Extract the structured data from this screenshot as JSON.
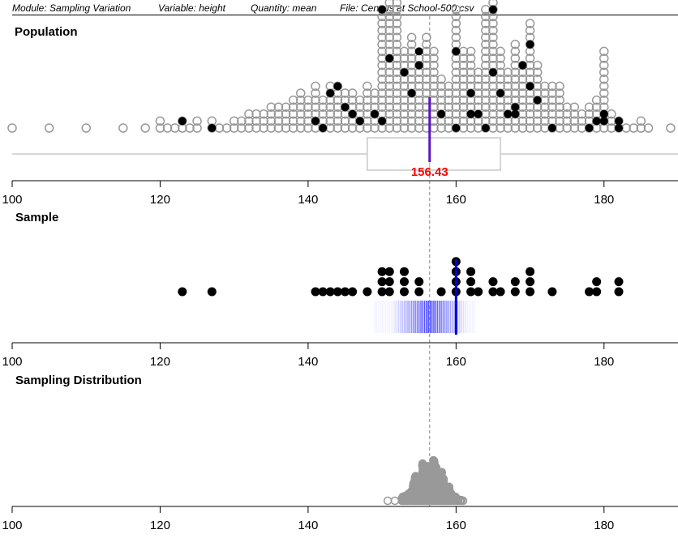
{
  "header": {
    "module": "Module: Sampling Variation",
    "variable": "Variable: height",
    "quantity": "Quantity: mean",
    "file": "File: Census at School-500.csv"
  },
  "colors": {
    "population_point": "#999999",
    "sample_point": "#000000",
    "box_outline": "#c8c8c8",
    "population_mean_line": "#5b16c2",
    "sample_mean_line": "#0000d8",
    "history_band": "#1a1aff",
    "mean_label": "#ff0000",
    "reference_line": "#888888"
  },
  "chart_data": [
    {
      "panel": "population",
      "type": "scatter",
      "title": "Population",
      "xlim": [
        100,
        190
      ],
      "x_ticks": [
        100,
        120,
        140,
        160,
        180
      ],
      "grid": false,
      "mean": 156.43,
      "mean_label": "156.43",
      "boxplot": {
        "q1": 148,
        "q3": 166
      },
      "stack_heights": [
        [
          100,
          1
        ],
        [
          105,
          1
        ],
        [
          110,
          1
        ],
        [
          115,
          1
        ],
        [
          118,
          1
        ],
        [
          120,
          2
        ],
        [
          121,
          1
        ],
        [
          122,
          1
        ],
        [
          123,
          2
        ],
        [
          124,
          1
        ],
        [
          125,
          2
        ],
        [
          127,
          2
        ],
        [
          128,
          1
        ],
        [
          129,
          1
        ],
        [
          130,
          2
        ],
        [
          131,
          2
        ],
        [
          132,
          3
        ],
        [
          133,
          3
        ],
        [
          134,
          3
        ],
        [
          135,
          4
        ],
        [
          136,
          4
        ],
        [
          137,
          4
        ],
        [
          138,
          5
        ],
        [
          139,
          6
        ],
        [
          140,
          5
        ],
        [
          141,
          7
        ],
        [
          142,
          5
        ],
        [
          143,
          7
        ],
        [
          144,
          7
        ],
        [
          145,
          6
        ],
        [
          146,
          6
        ],
        [
          147,
          5
        ],
        [
          148,
          7
        ],
        [
          149,
          6
        ],
        [
          150,
          18
        ],
        [
          151,
          20
        ],
        [
          152,
          22
        ],
        [
          153,
          12
        ],
        [
          154,
          14
        ],
        [
          155,
          11
        ],
        [
          156,
          14
        ],
        [
          157,
          12
        ],
        [
          158,
          8
        ],
        [
          159,
          7
        ],
        [
          160,
          18
        ],
        [
          161,
          12
        ],
        [
          162,
          12
        ],
        [
          163,
          9
        ],
        [
          164,
          18
        ],
        [
          165,
          28
        ],
        [
          166,
          12
        ],
        [
          167,
          9
        ],
        [
          168,
          13
        ],
        [
          169,
          10
        ],
        [
          170,
          16
        ],
        [
          171,
          10
        ],
        [
          172,
          7
        ],
        [
          173,
          7
        ],
        [
          174,
          7
        ],
        [
          175,
          4
        ],
        [
          176,
          4
        ],
        [
          177,
          3
        ],
        [
          178,
          4
        ],
        [
          179,
          5
        ],
        [
          180,
          12
        ],
        [
          181,
          3
        ],
        [
          182,
          2
        ],
        [
          183,
          1
        ],
        [
          184,
          1
        ],
        [
          185,
          2
        ],
        [
          186,
          1
        ],
        [
          189,
          1
        ]
      ],
      "sample_marks": [
        [
          123,
          2
        ],
        [
          127,
          1
        ],
        [
          141,
          2
        ],
        [
          142,
          1
        ],
        [
          143,
          6
        ],
        [
          144,
          7
        ],
        [
          145,
          4
        ],
        [
          146,
          3
        ],
        [
          147,
          2
        ],
        [
          149,
          3
        ],
        [
          150,
          2
        ],
        [
          150,
          18
        ],
        [
          151,
          11
        ],
        [
          153,
          9
        ],
        [
          154,
          6
        ],
        [
          155,
          12
        ],
        [
          155,
          10
        ],
        [
          158,
          3
        ],
        [
          160,
          12
        ],
        [
          160,
          1
        ],
        [
          162,
          3
        ],
        [
          162,
          6
        ],
        [
          163,
          3
        ],
        [
          164,
          1
        ],
        [
          165,
          9
        ],
        [
          165,
          18
        ],
        [
          166,
          6
        ],
        [
          167,
          3
        ],
        [
          168,
          4
        ],
        [
          168,
          3
        ],
        [
          169,
          10
        ],
        [
          170,
          13
        ],
        [
          170,
          7
        ],
        [
          171,
          5
        ],
        [
          173,
          1
        ],
        [
          178,
          1
        ],
        [
          179,
          2
        ],
        [
          180,
          3
        ],
        [
          180,
          2
        ],
        [
          182,
          1
        ],
        [
          182,
          2
        ]
      ]
    },
    {
      "panel": "sample",
      "type": "scatter",
      "title": "Sample",
      "xlim": [
        100,
        190
      ],
      "x_ticks": [
        100,
        120,
        140,
        160,
        180
      ],
      "grid": false,
      "sample_mean": 160,
      "history_range": [
        149,
        162.5
      ],
      "points": [
        [
          123,
          1
        ],
        [
          127,
          1
        ],
        [
          141,
          1
        ],
        [
          142,
          1
        ],
        [
          143,
          1
        ],
        [
          144,
          1
        ],
        [
          145,
          1
        ],
        [
          146,
          1
        ],
        [
          148,
          1
        ],
        [
          150,
          1
        ],
        [
          150,
          2
        ],
        [
          150,
          3
        ],
        [
          151,
          1
        ],
        [
          151,
          2
        ],
        [
          151,
          3
        ],
        [
          153,
          1
        ],
        [
          153,
          2
        ],
        [
          153,
          3
        ],
        [
          155,
          1
        ],
        [
          155,
          2
        ],
        [
          158,
          1
        ],
        [
          160,
          1
        ],
        [
          160,
          2
        ],
        [
          160,
          3
        ],
        [
          160,
          4
        ],
        [
          162,
          1
        ],
        [
          162,
          2
        ],
        [
          162,
          3
        ],
        [
          163,
          1
        ],
        [
          165,
          1
        ],
        [
          165,
          2
        ],
        [
          166,
          1
        ],
        [
          168,
          1
        ],
        [
          168,
          2
        ],
        [
          170,
          1
        ],
        [
          170,
          2
        ],
        [
          170,
          3
        ],
        [
          173,
          1
        ],
        [
          178,
          1
        ],
        [
          179,
          1
        ],
        [
          179,
          2
        ],
        [
          182,
          1
        ],
        [
          182,
          2
        ]
      ]
    },
    {
      "panel": "sampling_distribution",
      "type": "scatter",
      "title": "Sampling Distribution",
      "xlim": [
        100,
        190
      ],
      "x_ticks": [
        100,
        120,
        140,
        160,
        180
      ],
      "grid": false,
      "center": 156.43,
      "range": [
        149,
        163
      ]
    }
  ]
}
